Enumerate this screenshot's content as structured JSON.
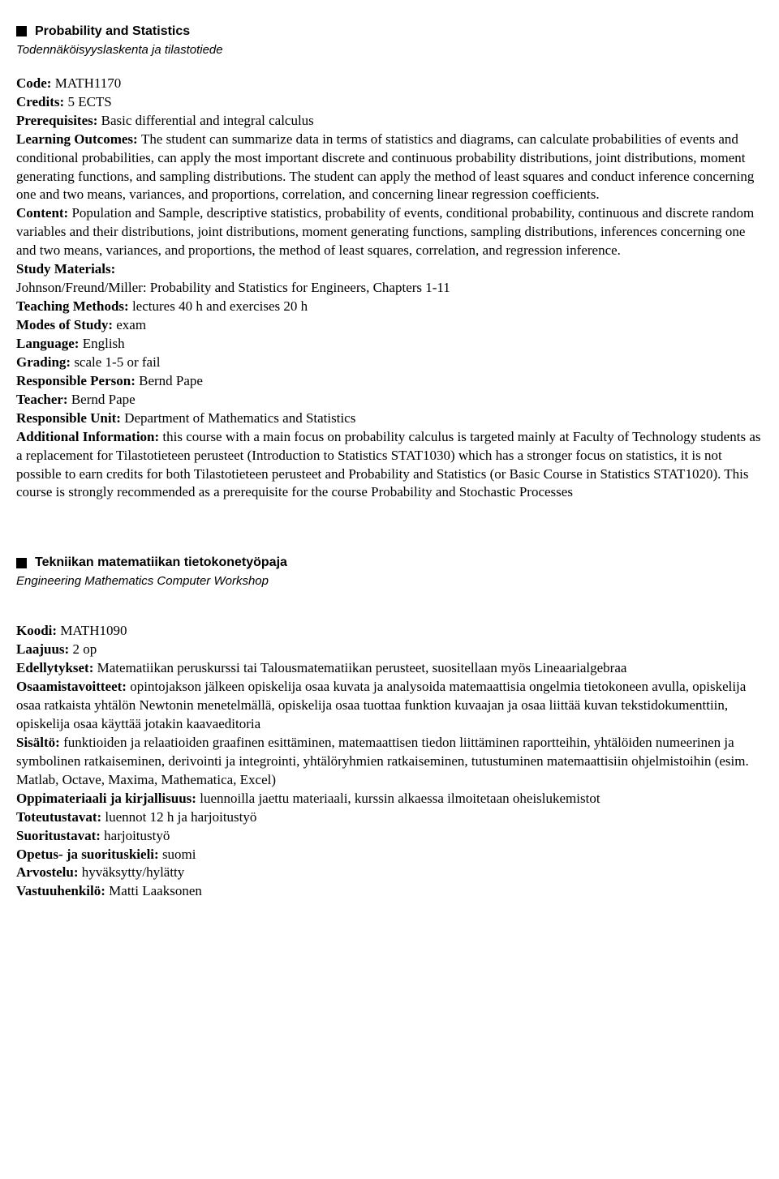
{
  "course1": {
    "title": "Probability and Statistics",
    "subtitle": "Todennäköisyyslaskenta ja tilastotiede",
    "code_label": "Code:",
    "code": "MATH1170",
    "credits_label": "Credits:",
    "credits": "5 ECTS",
    "prereq_label": "Prerequisites:",
    "prereq": "Basic differential and integral calculus",
    "outcomes_label": "Learning Outcomes:",
    "outcomes": "The student can summarize data in terms of statistics and diagrams, can calculate probabilities of events and conditional probabilities, can apply the most important discrete and continuous probability distributions, joint distributions, moment generating functions, and sampling distributions. The student can apply the method of least squares and conduct inference concerning one and two means, variances, and proportions, correlation, and concerning linear regression coefficients.",
    "content_label": "Content:",
    "content": "Population and Sample, descriptive statistics, probability of events, conditional probability, continuous and discrete random variables and their distributions, joint distributions, moment generating functions, sampling distributions, inferences concerning one and two means, variances, and proportions, the method of least squares, correlation, and regression inference.",
    "materials_label": "Study Materials:",
    "materials": "Johnson/Freund/Miller: Probability and Statistics for Engineers, Chapters 1-11",
    "methods_label": "Teaching Methods:",
    "methods": "lectures 40 h and exercises 20 h",
    "modes_label": "Modes of Study:",
    "modes": "exam",
    "language_label": "Language:",
    "language": "English",
    "grading_label": "Grading:",
    "grading": "scale 1-5 or fail",
    "resp_person_label": "Responsible Person:",
    "resp_person": "Bernd Pape",
    "teacher_label": "Teacher:",
    "teacher": "Bernd Pape",
    "resp_unit_label": "Responsible Unit:",
    "resp_unit": "Department of Mathematics and Statistics",
    "addl_label": "Additional Information:",
    "addl": "this course with a main focus on probability calculus is targeted mainly at Faculty of Technology students as a replacement for Tilastotieteen perusteet (Introduction to Statistics STAT1030) which has a stronger focus on statistics, it is not possible to earn credits for both Tilastotieteen perusteet and Probability and Statistics (or Basic Course in Statistics STAT1020). This course is strongly recommended as a prerequisite for the course Probability and Stochastic Processes"
  },
  "course2": {
    "title": "Tekniikan matematiikan tietokonetyöpaja",
    "subtitle": "Engineering Mathematics Computer Workshop",
    "code_label": "Koodi:",
    "code": "MATH1090",
    "credits_label": "Laajuus:",
    "credits": "2 op",
    "prereq_label": "Edellytykset:",
    "prereq": "Matematiikan peruskurssi tai Talousmatematiikan perusteet, suositellaan myös Lineaarialgebraa",
    "outcomes_label": "Osaamistavoitteet:",
    "outcomes": "opintojakson jälkeen opiskelija osaa kuvata ja analysoida matemaattisia ongelmia tietokoneen avulla, opiskelija osaa ratkaista yhtälön Newtonin menetelmällä, opiskelija osaa tuottaa funktion kuvaajan ja osaa liittää kuvan tekstidokumenttiin, opiskelija osaa käyttää jotakin kaavaeditoria",
    "content_label": "Sisältö:",
    "content": "funktioiden ja relaatioiden graafinen esittäminen, matemaattisen tiedon liittäminen raportteihin, yhtälöiden numeerinen ja symbolinen ratkaiseminen, derivointi ja integrointi, yhtälöryhmien ratkaiseminen, tutustuminen matemaattisiin ohjelmistoihin (esim. Matlab, Octave, Maxima, Mathematica, Excel)",
    "materials_label": "Oppimateriaali ja kirjallisuus:",
    "materials": "luennoilla jaettu materiaali, kurssin alkaessa ilmoitetaan oheislukemistot",
    "methods_label": "Toteutustavat:",
    "methods": "luennot 12 h ja harjoitustyö",
    "modes_label": "Suoritustavat:",
    "modes": "harjoitustyö",
    "language_label": "Opetus- ja suorituskieli:",
    "language": "suomi",
    "grading_label": "Arvostelu:",
    "grading": "hyväksytty/hylätty",
    "resp_person_label": "Vastuuhenkilö:",
    "resp_person": "Matti Laaksonen"
  }
}
